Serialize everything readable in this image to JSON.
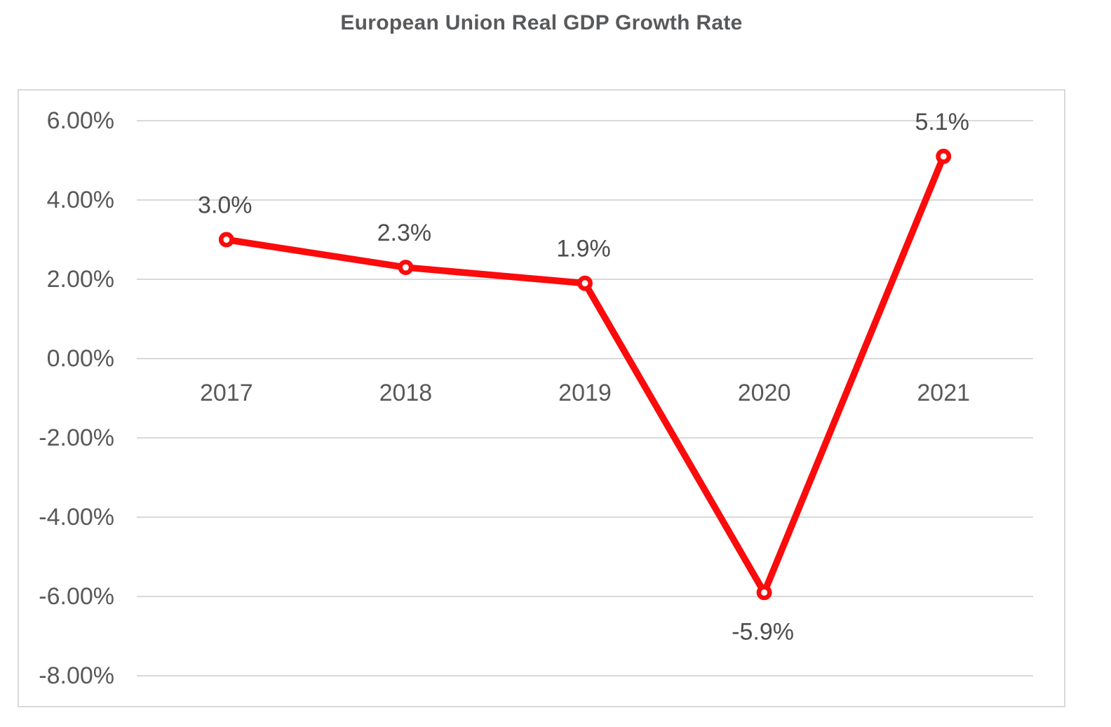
{
  "title": "European Union Real GDP Growth Rate",
  "chart_data": {
    "type": "line",
    "title": "European Union Real GDP Growth Rate",
    "categories": [
      "2017",
      "2018",
      "2019",
      "2020",
      "2021"
    ],
    "values": [
      3.0,
      2.3,
      1.9,
      -5.9,
      5.1
    ],
    "data_labels": [
      "3.0%",
      "2.3%",
      "1.9%",
      "-5.9%",
      "5.1%"
    ],
    "y_ticks": [
      {
        "value": 6,
        "label": "6.00%"
      },
      {
        "value": 4,
        "label": "4.00%"
      },
      {
        "value": 2,
        "label": "2.00%"
      },
      {
        "value": 0,
        "label": "0.00%"
      },
      {
        "value": -2,
        "label": "-2.00%"
      },
      {
        "value": -4,
        "label": "-4.00%"
      },
      {
        "value": -6,
        "label": "-6.00%"
      },
      {
        "value": -8,
        "label": "-8.00%"
      }
    ],
    "ylim": [
      -8,
      6
    ],
    "grid": "horizontal",
    "legend_position": "none",
    "marker": "open-circle",
    "colors": {
      "line": "#fb0b0b",
      "marker_fill": "#ffffff",
      "gridline": "#d9d9d9",
      "frame_border": "#d9d9d9",
      "axis_text": "#595959",
      "data_label_text": "#4d4d4d",
      "title_text": "#58595b"
    }
  }
}
